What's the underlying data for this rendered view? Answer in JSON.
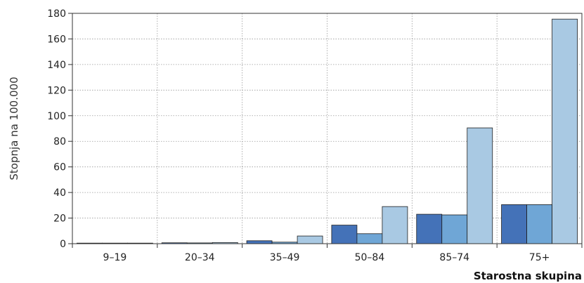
{
  "chart_data": {
    "type": "bar",
    "categories": [
      "9–19",
      "20–34",
      "35–49",
      "50–84",
      "85–74",
      "75+"
    ],
    "series": [
      {
        "values": [
          0.2,
          0.7,
          2.3,
          14.5,
          23,
          30.5
        ]
      },
      {
        "values": [
          0.2,
          0.6,
          1.2,
          7.8,
          22.5,
          30.5
        ]
      },
      {
        "values": [
          0.2,
          0.9,
          6.0,
          29,
          90.5,
          175.5
        ]
      }
    ],
    "colors": [
      "#4472b8",
      "#6fa6d6",
      "#a9c9e3"
    ],
    "xlabel": "Starostna skupina",
    "ylabel": "Stopnja na 100.000",
    "ylim": [
      0,
      180
    ],
    "yticks": [
      0,
      20,
      40,
      60,
      80,
      100,
      120,
      140,
      160,
      180
    ],
    "grid": true
  }
}
